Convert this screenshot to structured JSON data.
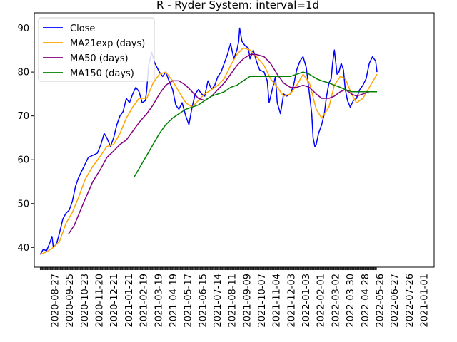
{
  "chart_data": {
    "type": "line",
    "title": "R - Ryder System: interval=1d",
    "xlabel": "",
    "ylabel": "",
    "ylim": [
      35.5,
      93.5
    ],
    "y_ticks": [
      40,
      50,
      60,
      70,
      80,
      90
    ],
    "x_range": [
      "2020-08-14",
      "2023-01-13"
    ],
    "x_ticks": [
      "2020-08-27",
      "2020-09-25",
      "2020-10-23",
      "2020-11-20",
      "2020-12-21",
      "2021-01-21",
      "2021-02-19",
      "2021-03-19",
      "2021-04-19",
      "2021-05-17",
      "2021-06-15",
      "2021-07-14",
      "2021-08-11",
      "2021-09-09",
      "2021-10-07",
      "2021-11-04",
      "2021-12-03",
      "2022-01-03",
      "2022-02-01",
      "2022-03-02",
      "2022-03-30",
      "2022-04-28",
      "2022-05-26",
      "2022-06-27",
      "2022-07-26",
      "2021-01-01"
    ],
    "grid": false,
    "legend_position": "top-left",
    "series": [
      {
        "name": "Close",
        "color": "#0000ff",
        "points": [
          [
            "2020-08-27",
            38.4
          ],
          [
            "2020-09-03",
            39.6
          ],
          [
            "2020-09-10",
            39.2
          ],
          [
            "2020-09-17",
            41.0
          ],
          [
            "2020-09-22",
            42.5
          ],
          [
            "2020-09-25",
            40.0
          ],
          [
            "2020-10-02",
            40.8
          ],
          [
            "2020-10-09",
            43.5
          ],
          [
            "2020-10-16",
            46.5
          ],
          [
            "2020-10-23",
            47.8
          ],
          [
            "2020-10-30",
            48.5
          ],
          [
            "2020-11-06",
            50.5
          ],
          [
            "2020-11-13",
            54.0
          ],
          [
            "2020-11-20",
            56.0
          ],
          [
            "2020-11-27",
            57.5
          ],
          [
            "2020-12-04",
            59.0
          ],
          [
            "2020-12-11",
            60.5
          ],
          [
            "2020-12-21",
            61.0
          ],
          [
            "2020-12-31",
            61.5
          ],
          [
            "2021-01-08",
            63.5
          ],
          [
            "2021-01-15",
            66.0
          ],
          [
            "2021-01-21",
            65.0
          ],
          [
            "2021-01-29",
            63.0
          ],
          [
            "2021-02-05",
            65.0
          ],
          [
            "2021-02-12",
            68.0
          ],
          [
            "2021-02-19",
            70.0
          ],
          [
            "2021-02-26",
            71.0
          ],
          [
            "2021-03-05",
            74.0
          ],
          [
            "2021-03-12",
            73.0
          ],
          [
            "2021-03-19",
            75.0
          ],
          [
            "2021-03-26",
            76.5
          ],
          [
            "2021-04-02",
            75.5
          ],
          [
            "2021-04-09",
            73.0
          ],
          [
            "2021-04-16",
            73.5
          ],
          [
            "2021-04-19",
            76.0
          ],
          [
            "2021-04-23",
            81.5
          ],
          [
            "2021-04-30",
            84.5
          ],
          [
            "2021-05-07",
            82.0
          ],
          [
            "2021-05-17",
            80.0
          ],
          [
            "2021-05-24",
            79.0
          ],
          [
            "2021-05-31",
            80.0
          ],
          [
            "2021-06-07",
            78.0
          ],
          [
            "2021-06-15",
            76.0
          ],
          [
            "2021-06-22",
            72.5
          ],
          [
            "2021-06-29",
            71.5
          ],
          [
            "2021-07-06",
            73.0
          ],
          [
            "2021-07-14",
            70.0
          ],
          [
            "2021-07-21",
            68.0
          ],
          [
            "2021-07-28",
            72.0
          ],
          [
            "2021-08-04",
            75.0
          ],
          [
            "2021-08-11",
            76.0
          ],
          [
            "2021-08-18",
            75.0
          ],
          [
            "2021-08-25",
            74.5
          ],
          [
            "2021-09-01",
            78.0
          ],
          [
            "2021-09-09",
            76.0
          ],
          [
            "2021-09-16",
            77.0
          ],
          [
            "2021-09-23",
            79.0
          ],
          [
            "2021-09-30",
            80.0
          ],
          [
            "2021-10-07",
            82.0
          ],
          [
            "2021-10-14",
            84.0
          ],
          [
            "2021-10-21",
            86.5
          ],
          [
            "2021-10-28",
            83.0
          ],
          [
            "2021-11-04",
            85.0
          ],
          [
            "2021-11-08",
            87.0
          ],
          [
            "2021-11-10",
            90.0
          ],
          [
            "2021-11-15",
            87.0
          ],
          [
            "2021-11-22",
            86.0
          ],
          [
            "2021-11-29",
            85.5
          ],
          [
            "2021-12-03",
            83.0
          ],
          [
            "2021-12-10",
            85.0
          ],
          [
            "2021-12-17",
            82.5
          ],
          [
            "2021-12-24",
            80.5
          ],
          [
            "2022-01-03",
            80.0
          ],
          [
            "2022-01-10",
            78.0
          ],
          [
            "2022-01-14",
            73.0
          ],
          [
            "2022-01-21",
            76.0
          ],
          [
            "2022-01-28",
            79.0
          ],
          [
            "2022-02-01",
            73.0
          ],
          [
            "2022-02-08",
            70.5
          ],
          [
            "2022-02-15",
            75.0
          ],
          [
            "2022-02-22",
            74.5
          ],
          [
            "2022-03-02",
            75.0
          ],
          [
            "2022-03-09",
            77.0
          ],
          [
            "2022-03-16",
            80.5
          ],
          [
            "2022-03-23",
            82.5
          ],
          [
            "2022-03-30",
            83.5
          ],
          [
            "2022-04-06",
            81.0
          ],
          [
            "2022-04-13",
            75.0
          ],
          [
            "2022-04-18",
            70.5
          ],
          [
            "2022-04-21",
            65.0
          ],
          [
            "2022-04-25",
            63.0
          ],
          [
            "2022-04-28",
            63.5
          ],
          [
            "2022-05-03",
            66.0
          ],
          [
            "2022-05-10",
            68.0
          ],
          [
            "2022-05-16",
            70.5
          ],
          [
            "2022-05-20",
            74.0
          ],
          [
            "2022-05-26",
            77.5
          ],
          [
            "2022-05-31",
            78.5
          ],
          [
            "2022-06-03",
            82.0
          ],
          [
            "2022-06-07",
            85.0
          ],
          [
            "2022-06-13",
            79.5
          ],
          [
            "2022-06-17",
            80.0
          ],
          [
            "2022-06-22",
            82.0
          ],
          [
            "2022-06-27",
            80.5
          ],
          [
            "2022-07-01",
            76.0
          ],
          [
            "2022-07-06",
            73.5
          ],
          [
            "2022-07-12",
            72.0
          ],
          [
            "2022-07-19",
            73.5
          ],
          [
            "2022-07-26",
            74.0
          ],
          [
            "2022-08-02",
            76.0
          ],
          [
            "2022-08-09",
            77.0
          ],
          [
            "2022-08-16",
            78.5
          ],
          [
            "2022-08-23",
            82.0
          ],
          [
            "2022-08-30",
            83.5
          ],
          [
            "2022-09-06",
            82.5
          ],
          [
            "2022-09-09",
            80.0
          ]
        ]
      },
      {
        "name": "MA21exp (days)",
        "color": "#ffa500",
        "points": [
          [
            "2020-08-27",
            38.4
          ],
          [
            "2020-09-10",
            39.0
          ],
          [
            "2020-09-25",
            40.0
          ],
          [
            "2020-10-09",
            41.5
          ],
          [
            "2020-10-23",
            45.5
          ],
          [
            "2020-11-06",
            48.0
          ],
          [
            "2020-11-20",
            51.5
          ],
          [
            "2020-12-04",
            55.5
          ],
          [
            "2020-12-21",
            58.5
          ],
          [
            "2021-01-08",
            61.0
          ],
          [
            "2021-01-21",
            63.0
          ],
          [
            "2021-02-05",
            63.5
          ],
          [
            "2021-02-19",
            66.0
          ],
          [
            "2021-03-05",
            69.5
          ],
          [
            "2021-03-19",
            72.0
          ],
          [
            "2021-04-02",
            74.0
          ],
          [
            "2021-04-19",
            74.0
          ],
          [
            "2021-05-03",
            77.5
          ],
          [
            "2021-05-17",
            79.5
          ],
          [
            "2021-05-31",
            80.0
          ],
          [
            "2021-06-15",
            78.0
          ],
          [
            "2021-06-29",
            75.5
          ],
          [
            "2021-07-14",
            73.0
          ],
          [
            "2021-07-28",
            72.0
          ],
          [
            "2021-08-11",
            73.5
          ],
          [
            "2021-08-25",
            75.0
          ],
          [
            "2021-09-09",
            76.0
          ],
          [
            "2021-09-23",
            77.0
          ],
          [
            "2021-10-07",
            78.5
          ],
          [
            "2021-10-21",
            81.5
          ],
          [
            "2021-11-04",
            84.0
          ],
          [
            "2021-11-18",
            85.5
          ],
          [
            "2021-12-03",
            85.0
          ],
          [
            "2021-12-17",
            83.5
          ],
          [
            "2022-01-03",
            81.5
          ],
          [
            "2022-01-17",
            78.5
          ],
          [
            "2022-02-01",
            76.5
          ],
          [
            "2022-02-15",
            74.5
          ],
          [
            "2022-03-02",
            75.0
          ],
          [
            "2022-03-16",
            77.0
          ],
          [
            "2022-03-30",
            79.5
          ],
          [
            "2022-04-13",
            77.5
          ],
          [
            "2022-04-28",
            71.5
          ],
          [
            "2022-05-10",
            69.5
          ],
          [
            "2022-05-26",
            72.0
          ],
          [
            "2022-06-07",
            77.0
          ],
          [
            "2022-06-20",
            79.0
          ],
          [
            "2022-07-01",
            78.5
          ],
          [
            "2022-07-15",
            75.0
          ],
          [
            "2022-07-26",
            73.0
          ],
          [
            "2022-08-09",
            74.0
          ],
          [
            "2022-08-23",
            76.5
          ],
          [
            "2022-09-09",
            79.5
          ]
        ]
      },
      {
        "name": "MA50 (days)",
        "color": "#800080",
        "points": [
          [
            "2020-10-28",
            43.0
          ],
          [
            "2020-11-10",
            45.0
          ],
          [
            "2020-11-20",
            47.5
          ],
          [
            "2020-12-04",
            51.0
          ],
          [
            "2020-12-21",
            55.0
          ],
          [
            "2021-01-08",
            58.0
          ],
          [
            "2021-01-21",
            60.5
          ],
          [
            "2021-02-05",
            62.0
          ],
          [
            "2021-02-19",
            63.5
          ],
          [
            "2021-03-05",
            64.5
          ],
          [
            "2021-03-19",
            66.5
          ],
          [
            "2021-04-02",
            68.5
          ],
          [
            "2021-04-19",
            70.5
          ],
          [
            "2021-05-03",
            72.5
          ],
          [
            "2021-05-17",
            75.0
          ],
          [
            "2021-05-31",
            77.0
          ],
          [
            "2021-06-15",
            78.0
          ],
          [
            "2021-06-29",
            78.0
          ],
          [
            "2021-07-14",
            77.0
          ],
          [
            "2021-07-28",
            75.5
          ],
          [
            "2021-08-11",
            74.0
          ],
          [
            "2021-08-25",
            73.5
          ],
          [
            "2021-09-09",
            74.5
          ],
          [
            "2021-09-23",
            76.0
          ],
          [
            "2021-10-07",
            77.5
          ],
          [
            "2021-10-21",
            79.5
          ],
          [
            "2021-11-04",
            81.5
          ],
          [
            "2021-11-18",
            83.0
          ],
          [
            "2021-12-03",
            84.0
          ],
          [
            "2021-12-17",
            84.0
          ],
          [
            "2022-01-03",
            83.5
          ],
          [
            "2022-01-17",
            82.0
          ],
          [
            "2022-02-01",
            79.5
          ],
          [
            "2022-02-15",
            77.5
          ],
          [
            "2022-03-02",
            76.5
          ],
          [
            "2022-03-16",
            76.5
          ],
          [
            "2022-03-30",
            77.0
          ],
          [
            "2022-04-13",
            76.5
          ],
          [
            "2022-04-28",
            75.0
          ],
          [
            "2022-05-10",
            74.0
          ],
          [
            "2022-05-26",
            74.0
          ],
          [
            "2022-06-07",
            74.5
          ],
          [
            "2022-06-20",
            75.5
          ],
          [
            "2022-07-01",
            76.0
          ],
          [
            "2022-07-15",
            75.0
          ],
          [
            "2022-07-26",
            74.5
          ],
          [
            "2022-08-09",
            75.0
          ],
          [
            "2022-08-23",
            75.5
          ],
          [
            "2022-09-09",
            75.5
          ]
        ]
      },
      {
        "name": "MA150 (days)",
        "color": "#008000",
        "points": [
          [
            "2021-03-22",
            56.0
          ],
          [
            "2021-04-05",
            58.5
          ],
          [
            "2021-04-19",
            61.0
          ],
          [
            "2021-05-03",
            63.5
          ],
          [
            "2021-05-17",
            66.0
          ],
          [
            "2021-05-31",
            68.0
          ],
          [
            "2021-06-15",
            69.5
          ],
          [
            "2021-06-29",
            70.5
          ],
          [
            "2021-07-14",
            71.5
          ],
          [
            "2021-07-28",
            72.0
          ],
          [
            "2021-08-11",
            72.5
          ],
          [
            "2021-08-25",
            73.5
          ],
          [
            "2021-09-09",
            74.5
          ],
          [
            "2021-09-23",
            75.0
          ],
          [
            "2021-10-07",
            75.5
          ],
          [
            "2021-10-21",
            76.5
          ],
          [
            "2021-11-04",
            77.0
          ],
          [
            "2021-11-18",
            78.0
          ],
          [
            "2021-12-03",
            79.0
          ],
          [
            "2021-12-17",
            79.0
          ],
          [
            "2022-01-03",
            79.0
          ],
          [
            "2022-01-17",
            79.0
          ],
          [
            "2022-02-01",
            79.0
          ],
          [
            "2022-02-15",
            79.0
          ],
          [
            "2022-03-02",
            79.0
          ],
          [
            "2022-03-16",
            79.5
          ],
          [
            "2022-03-30",
            80.0
          ],
          [
            "2022-04-13",
            79.5
          ],
          [
            "2022-04-28",
            78.5
          ],
          [
            "2022-05-10",
            78.0
          ],
          [
            "2022-05-26",
            77.5
          ],
          [
            "2022-06-07",
            77.0
          ],
          [
            "2022-06-20",
            76.5
          ],
          [
            "2022-07-01",
            76.0
          ],
          [
            "2022-07-15",
            75.5
          ],
          [
            "2022-07-26",
            75.5
          ],
          [
            "2022-08-09",
            75.5
          ],
          [
            "2022-08-23",
            75.5
          ],
          [
            "2022-09-09",
            75.5
          ]
        ]
      }
    ]
  }
}
